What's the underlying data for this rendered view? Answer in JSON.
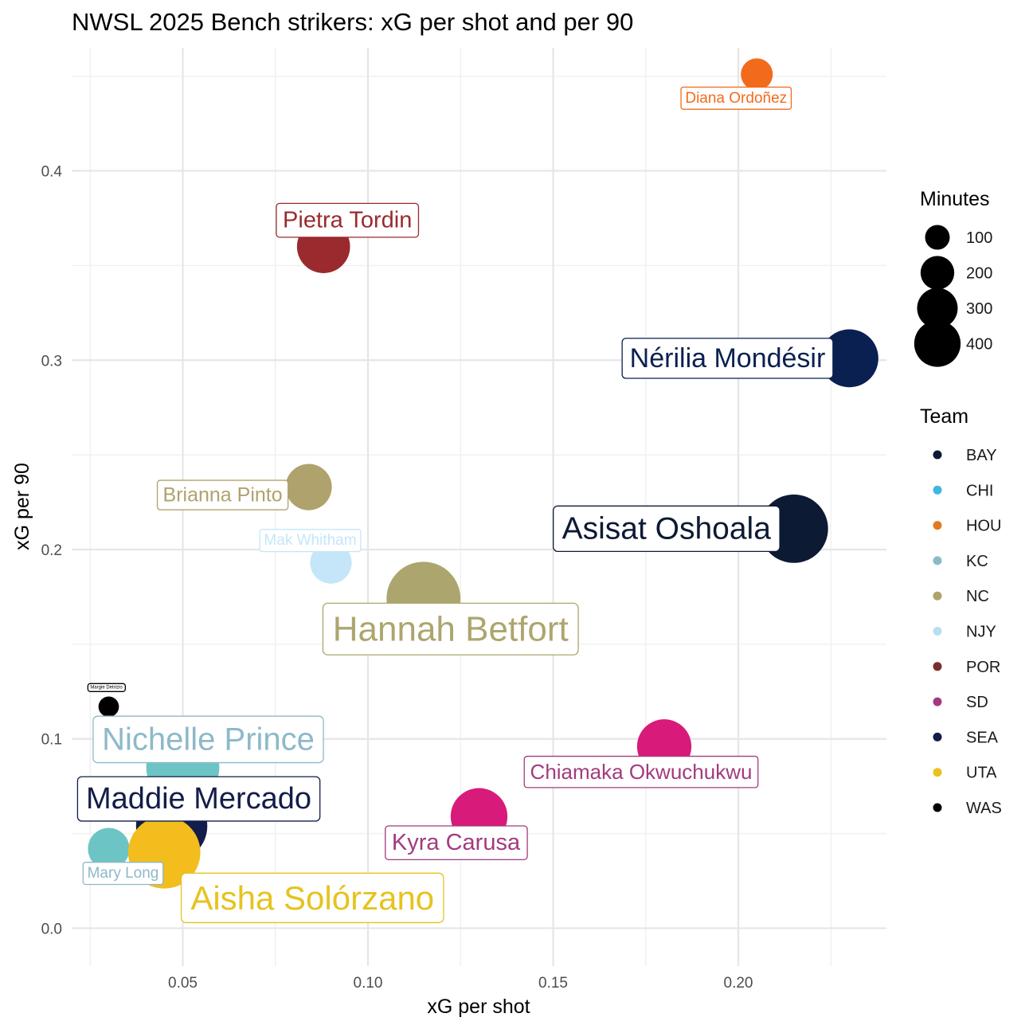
{
  "chart_data": {
    "type": "scatter",
    "title": "NWSL 2025 Bench strikers: xG per shot and per 90",
    "xlabel": "xG per shot",
    "ylabel": "xG per 90",
    "xlim": [
      0.02,
      0.24
    ],
    "ylim": [
      -0.02,
      0.465
    ],
    "x_ticks": [
      0.05,
      0.1,
      0.15,
      0.2
    ],
    "x_tick_labels": [
      "0.05",
      "0.10",
      "0.15",
      "0.20"
    ],
    "y_ticks": [
      0.0,
      0.1,
      0.2,
      0.3,
      0.4
    ],
    "y_tick_labels": [
      "0.0",
      "0.1",
      "0.2",
      "0.3",
      "0.4"
    ],
    "grid": true,
    "legend_placement": "right",
    "size_legend": {
      "title": "Minutes",
      "values": [
        100,
        200,
        300,
        400
      ],
      "labels": [
        "100",
        "200",
        "300",
        "400"
      ]
    },
    "color_legend": {
      "title": "Team",
      "teams": [
        {
          "name": "BAY",
          "color": "#0c1a33"
        },
        {
          "name": "CHI",
          "color": "#41b6e6"
        },
        {
          "name": "HOU",
          "color": "#e07b24"
        },
        {
          "name": "KC",
          "color": "#8db9c9"
        },
        {
          "name": "NC",
          "color": "#b0a26c"
        },
        {
          "name": "NJY",
          "color": "#b8dff2"
        },
        {
          "name": "POR",
          "color": "#7a2e2e"
        },
        {
          "name": "SD",
          "color": "#a23b7e"
        },
        {
          "name": "SEA",
          "color": "#121d4a"
        },
        {
          "name": "UTA",
          "color": "#e6c31f"
        },
        {
          "name": "WAS",
          "color": "#000000"
        }
      ]
    },
    "points": [
      {
        "player": "Diana Ordoñez",
        "team": "HOU",
        "x": 0.205,
        "y": 0.451,
        "minutes": 60,
        "color": "#f26b1d",
        "label_color": "#f26b1d",
        "label_size": 19
      },
      {
        "player": "Pietra Tordin",
        "team": "POR",
        "x": 0.088,
        "y": 0.36,
        "minutes": 190,
        "color": "#9a2a2e",
        "label_color": "#9a2a2e",
        "label_size": 29
      },
      {
        "player": "Nérilia Mondésir",
        "team": "SEA",
        "x": 0.23,
        "y": 0.301,
        "minutes": 230,
        "color": "#0a2050",
        "label_color": "#0a2050",
        "label_size": 34
      },
      {
        "player": "Brianna Pinto",
        "team": "NC",
        "x": 0.084,
        "y": 0.233,
        "minutes": 140,
        "color": "#b0a26c",
        "label_color": "#b0a26c",
        "label_size": 25
      },
      {
        "player": "Asisat Oshoala",
        "team": "BAY",
        "x": 0.215,
        "y": 0.211,
        "minutes": 330,
        "color": "#0c1a33",
        "label_color": "#0c1a33",
        "label_size": 39
      },
      {
        "player": "Mak Whitham",
        "team": "NJY",
        "x": 0.09,
        "y": 0.193,
        "minutes": 110,
        "color": "#c5e6f8",
        "label_color": "#c5e6f8",
        "label_size": 19
      },
      {
        "player": "Hannah Betfort",
        "team": "NC",
        "x": 0.115,
        "y": 0.174,
        "minutes": 390,
        "color": "#aca66e",
        "label_color": "#aca66e",
        "label_size": 44
      },
      {
        "player": "Margie Detrizio",
        "team": "WAS",
        "x": 0.03,
        "y": 0.117,
        "minutes": 20,
        "color": "#000000",
        "label_color": "#000000",
        "label_size": 6
      },
      {
        "player": "Nichelle Prince",
        "team": "KC",
        "x": 0.05,
        "y": 0.085,
        "minutes": 380,
        "color": "#6cc5c4",
        "label_color": "#8db9c9",
        "label_size": 40
      },
      {
        "player": "Chiamaka Okwuchukwu",
        "team": "SD",
        "x": 0.18,
        "y": 0.096,
        "minutes": 200,
        "color": "#d81b7a",
        "label_color": "#a23b7e",
        "label_size": 26
      },
      {
        "player": "Maddie Mercado",
        "team": "SEA",
        "x": 0.047,
        "y": 0.054,
        "minutes": 360,
        "color": "#121d4a",
        "label_color": "#121d4a",
        "label_size": 38
      },
      {
        "player": "Kyra Carusa",
        "team": "SD",
        "x": 0.13,
        "y": 0.059,
        "minutes": 220,
        "color": "#d81b7a",
        "label_color": "#a23b7e",
        "label_size": 29
      },
      {
        "player": "Mary Long",
        "team": "KC",
        "x": 0.03,
        "y": 0.042,
        "minutes": 110,
        "color": "#6cc5c4",
        "label_color": "#8db9c9",
        "label_size": 19
      },
      {
        "player": "Aisha Solórzano",
        "team": "UTA",
        "x": 0.045,
        "y": 0.04,
        "minutes": 370,
        "color": "#f2bd1d",
        "label_color": "#e6c31f",
        "label_size": 42
      }
    ]
  }
}
